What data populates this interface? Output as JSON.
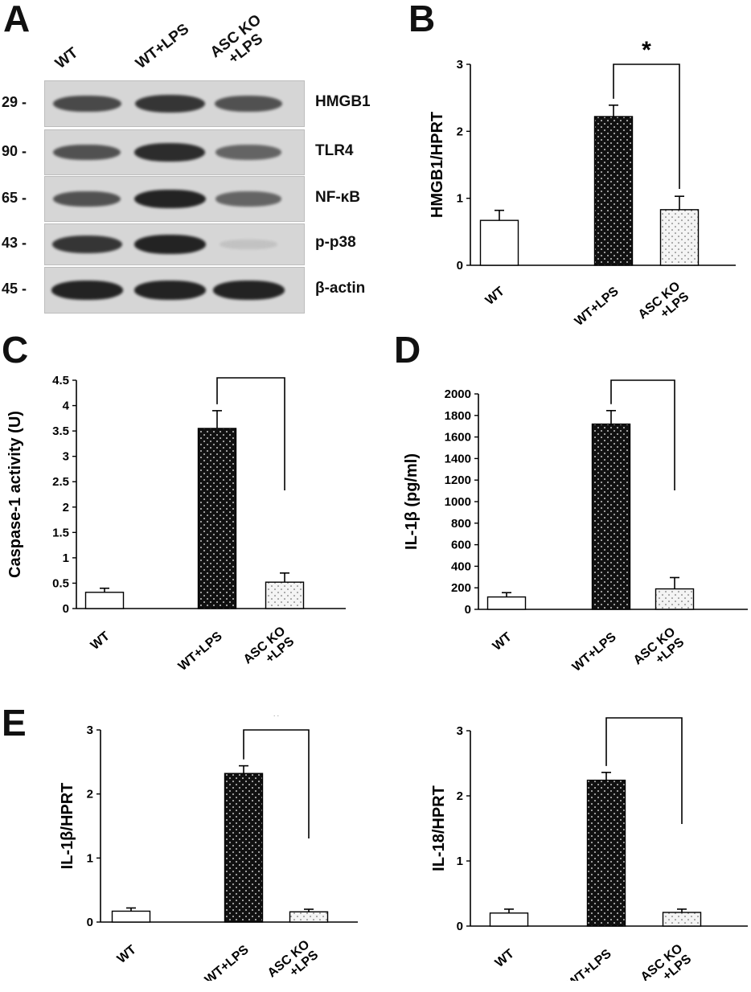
{
  "panel_letters": {
    "A": "A",
    "B": "B",
    "C": "C",
    "D": "D",
    "E": "E"
  },
  "blot": {
    "lanes": [
      "WT",
      "WT+LPS",
      "ASC KO\n+LPS"
    ],
    "rows": [
      {
        "mw": "29 -",
        "protein": "HMGB1",
        "intensity": [
          0.75,
          0.85,
          0.7
        ]
      },
      {
        "mw": "90 -",
        "protein": "TLR4",
        "intensity": [
          0.7,
          0.9,
          0.6
        ]
      },
      {
        "mw": "65 -",
        "protein": "NF-κB",
        "intensity": [
          0.7,
          0.95,
          0.6
        ]
      },
      {
        "mw": "43 -",
        "protein": "p-p38",
        "intensity": [
          0.85,
          0.95,
          0.1
        ]
      },
      {
        "mw": "45 -",
        "protein": "β-actin",
        "intensity": [
          0.95,
          0.95,
          0.95
        ]
      }
    ]
  },
  "colors": {
    "bar_outline": "#000000",
    "wt_fill": "#ffffff",
    "lps_fill": "#111111",
    "ko_fill": "#f4f4f4",
    "blot_bg": "#d6d6d6",
    "band": "#1a1a1a"
  },
  "chart_data": [
    {
      "panel": "B",
      "type": "bar",
      "categories": [
        "WT",
        "WT+LPS",
        "ASC KO\n+LPS"
      ],
      "values": [
        0.67,
        2.22,
        0.83
      ],
      "errors": [
        0.15,
        0.17,
        0.2
      ],
      "ylabel": "HMGB1/HPRT",
      "ylim": [
        0,
        3
      ],
      "yticks": [
        "0",
        "1",
        "2",
        "3"
      ],
      "significance": "*"
    },
    {
      "panel": "C",
      "type": "bar",
      "categories": [
        "WT",
        "WT+LPS",
        "ASC KO\n+LPS"
      ],
      "values": [
        0.32,
        3.55,
        0.52
      ],
      "errors": [
        0.08,
        0.35,
        0.18
      ],
      "ylabel": "Caspase-1 activity (U)",
      "ylim": [
        0,
        4.5
      ],
      "yticks": [
        "0",
        "0.5",
        "1",
        "1.5",
        "2",
        "2.5",
        "3",
        "3.5",
        "4",
        "4.5"
      ],
      "significance": "*"
    },
    {
      "panel": "D",
      "type": "bar",
      "categories": [
        "WT",
        "WT+LPS",
        "ASC KO\n+LPS"
      ],
      "values": [
        115,
        1720,
        190
      ],
      "errors": [
        40,
        125,
        105
      ],
      "ylabel": "IL-1β (pg/ml)",
      "ylim": [
        0,
        2000
      ],
      "yticks": [
        "0",
        "200",
        "400",
        "600",
        "800",
        "1000",
        "1200",
        "1400",
        "1600",
        "1800",
        "2000"
      ],
      "significance": "*"
    },
    {
      "panel": "E-left",
      "type": "bar",
      "categories": [
        "WT",
        "WT+LPS",
        "ASC KO\n+LPS"
      ],
      "values": [
        0.17,
        2.32,
        0.16
      ],
      "errors": [
        0.05,
        0.12,
        0.04
      ],
      "ylabel": "IL-1β/HPRT",
      "ylim": [
        0,
        3
      ],
      "yticks": [
        "0",
        "1",
        "2",
        "3"
      ],
      "significance": "*"
    },
    {
      "panel": "E-right",
      "type": "bar",
      "categories": [
        "WT",
        "WT+LPS",
        "ASC KO\n+LPS"
      ],
      "values": [
        0.2,
        2.24,
        0.21
      ],
      "errors": [
        0.06,
        0.12,
        0.05
      ],
      "ylabel": "IL-18/HPRT",
      "ylim": [
        0,
        3
      ],
      "yticks": [
        "0",
        "1",
        "2",
        "3"
      ],
      "significance": "*"
    }
  ]
}
